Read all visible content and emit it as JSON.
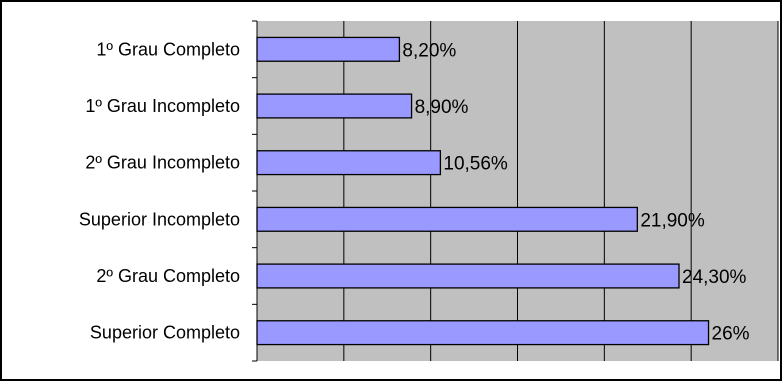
{
  "chart_data": {
    "type": "bar",
    "orientation": "horizontal",
    "title": "",
    "xlabel": "",
    "ylabel": "",
    "categories": [
      "1º Grau Completo",
      "1º Grau Incompleto",
      "2º Grau Incompleto",
      "Superior Incompleto",
      "2º Grau Completo",
      "Superior Completo"
    ],
    "values": [
      8.2,
      8.9,
      10.56,
      21.9,
      24.3,
      26
    ],
    "value_labels": [
      "8,20%",
      "8,90%",
      "10,56%",
      "21,90%",
      "24,30%",
      "26%"
    ],
    "xlim": [
      0,
      30
    ],
    "grid": true,
    "legend": "none",
    "colors": {
      "bar_fill": "#9999ff",
      "bar_stroke": "#000000",
      "plot_background": "#c0c0c0",
      "gridline": "#000000",
      "frame": "#000000"
    }
  }
}
